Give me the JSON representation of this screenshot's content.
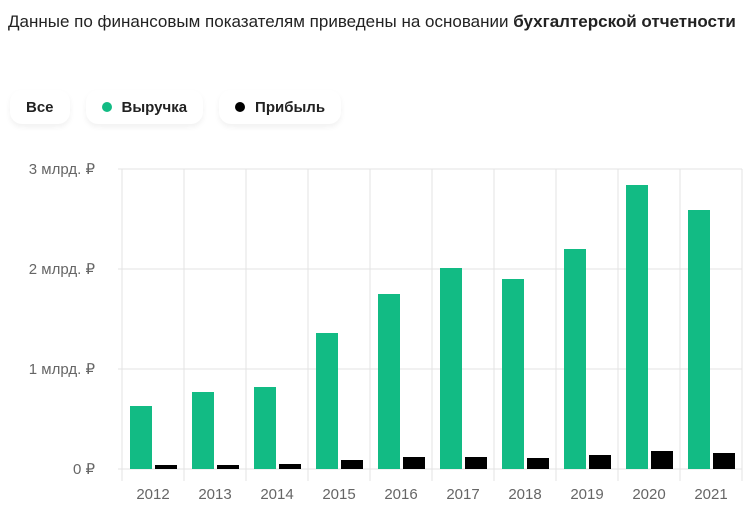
{
  "title": {
    "text": "Данные по финансовым показателям приведены на основании ",
    "bold": "бухгалтерской отчетности"
  },
  "legend": {
    "all": "Все",
    "revenue": "Выручка",
    "profit": "Прибыль"
  },
  "colors": {
    "revenue": "#12bb84",
    "profit": "#000000",
    "grid": "#e3e3e3"
  },
  "chart_data": {
    "type": "bar",
    "categories": [
      "2012",
      "2013",
      "2014",
      "2015",
      "2016",
      "2017",
      "2018",
      "2019",
      "2020",
      "2021"
    ],
    "series": [
      {
        "name": "Выручка",
        "values": [
          0.63,
          0.77,
          0.82,
          1.36,
          1.75,
          2.01,
          1.9,
          2.2,
          2.84,
          2.59
        ]
      },
      {
        "name": "Прибыль",
        "values": [
          0.04,
          0.04,
          0.05,
          0.09,
          0.12,
          0.12,
          0.11,
          0.14,
          0.18,
          0.16
        ]
      }
    ],
    "ylim": [
      0,
      3
    ],
    "yticks": [
      0,
      1,
      2,
      3
    ],
    "ytick_labels": [
      "0 ₽",
      "1 млрд. ₽",
      "2 млрд. ₽",
      "3 млрд. ₽"
    ],
    "unit": "млрд. ₽",
    "grid": true,
    "legend_position": "top-left"
  }
}
